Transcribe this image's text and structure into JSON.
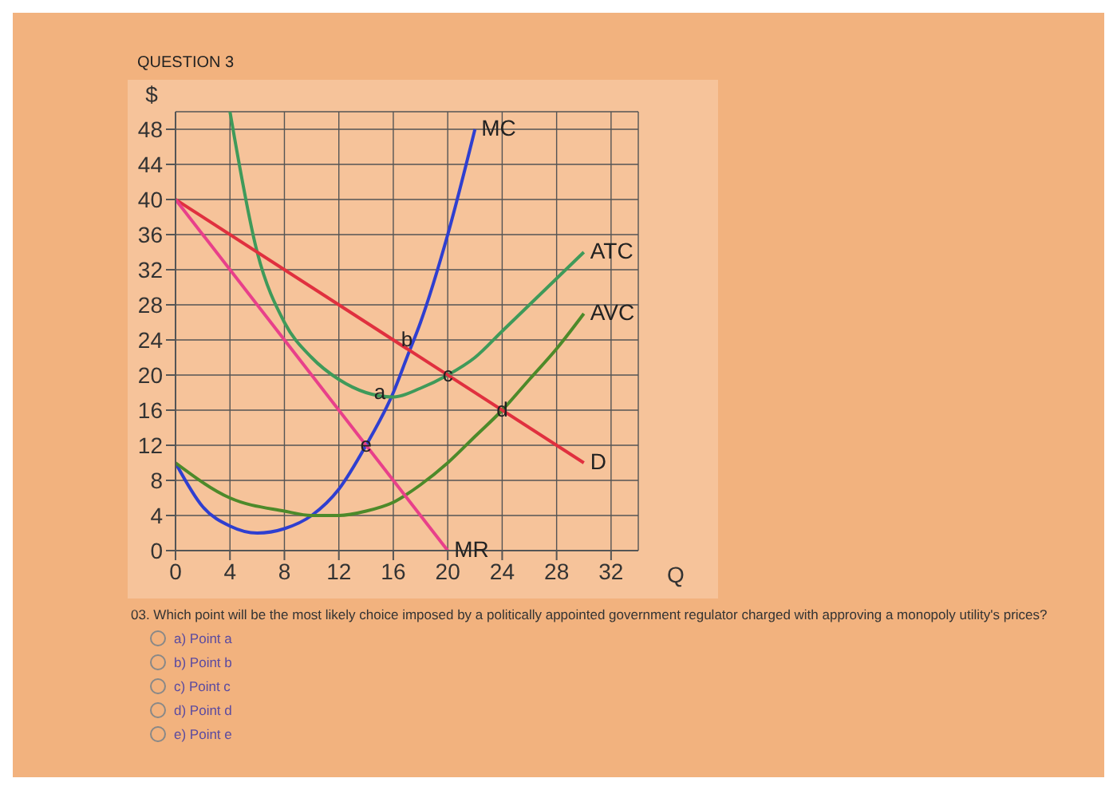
{
  "chart_data": {
    "type": "line",
    "title": "QUESTION 3",
    "xlabel": "Q",
    "ylabel": "$",
    "xlim": [
      0,
      34
    ],
    "ylim": [
      0,
      50
    ],
    "xticks": [
      0,
      4,
      8,
      12,
      16,
      20,
      24,
      28,
      32
    ],
    "yticks": [
      0,
      4,
      8,
      12,
      16,
      20,
      24,
      28,
      32,
      36,
      40,
      44,
      48
    ],
    "grid": true,
    "series": [
      {
        "name": "MC",
        "color": "#2f3fd0",
        "x": [
          0,
          2,
          4,
          6,
          8,
          10,
          12,
          14,
          16,
          17,
          18,
          20,
          22
        ],
        "values": [
          10,
          5,
          2.8,
          2,
          2.5,
          4,
          7,
          12,
          18,
          22,
          26,
          36,
          48
        ]
      },
      {
        "name": "ATC",
        "color": "#3f9a5a",
        "x": [
          4,
          6,
          8,
          10,
          12,
          14,
          16,
          18,
          20,
          22,
          24,
          26,
          28,
          30
        ],
        "values": [
          50,
          34,
          26,
          22,
          19.5,
          18,
          17.5,
          18.5,
          20,
          22,
          25,
          28,
          31,
          34
        ]
      },
      {
        "name": "AVC",
        "color": "#4d8a2a",
        "x": [
          0,
          4,
          8,
          10,
          12,
          14,
          16,
          18,
          20,
          22,
          24,
          26,
          28,
          30
        ],
        "values": [
          10,
          6,
          4.5,
          4,
          4,
          4.5,
          5.5,
          7.5,
          10,
          13,
          16,
          19.5,
          23,
          27
        ]
      },
      {
        "name": "D",
        "color": "#e0303f",
        "x": [
          0,
          30
        ],
        "values": [
          40,
          10
        ]
      },
      {
        "name": "MR",
        "color": "#e8408a",
        "x": [
          0,
          20
        ],
        "values": [
          40,
          0
        ]
      }
    ],
    "annotations": [
      {
        "text": "a",
        "x": 15,
        "y": 18
      },
      {
        "text": "b",
        "x": 17,
        "y": 24
      },
      {
        "text": "c",
        "x": 20,
        "y": 20
      },
      {
        "text": "d",
        "x": 24,
        "y": 16
      },
      {
        "text": "e",
        "x": 14,
        "y": 12
      },
      "03. Which point will be the most likely choice imposed by a politically appointed government regulator charged with approving a monopoly utility's prices?",
      "a) Point a",
      "b) Point b",
      "c) Point c",
      "d) Point d",
      "e) Point e"
    ]
  }
}
